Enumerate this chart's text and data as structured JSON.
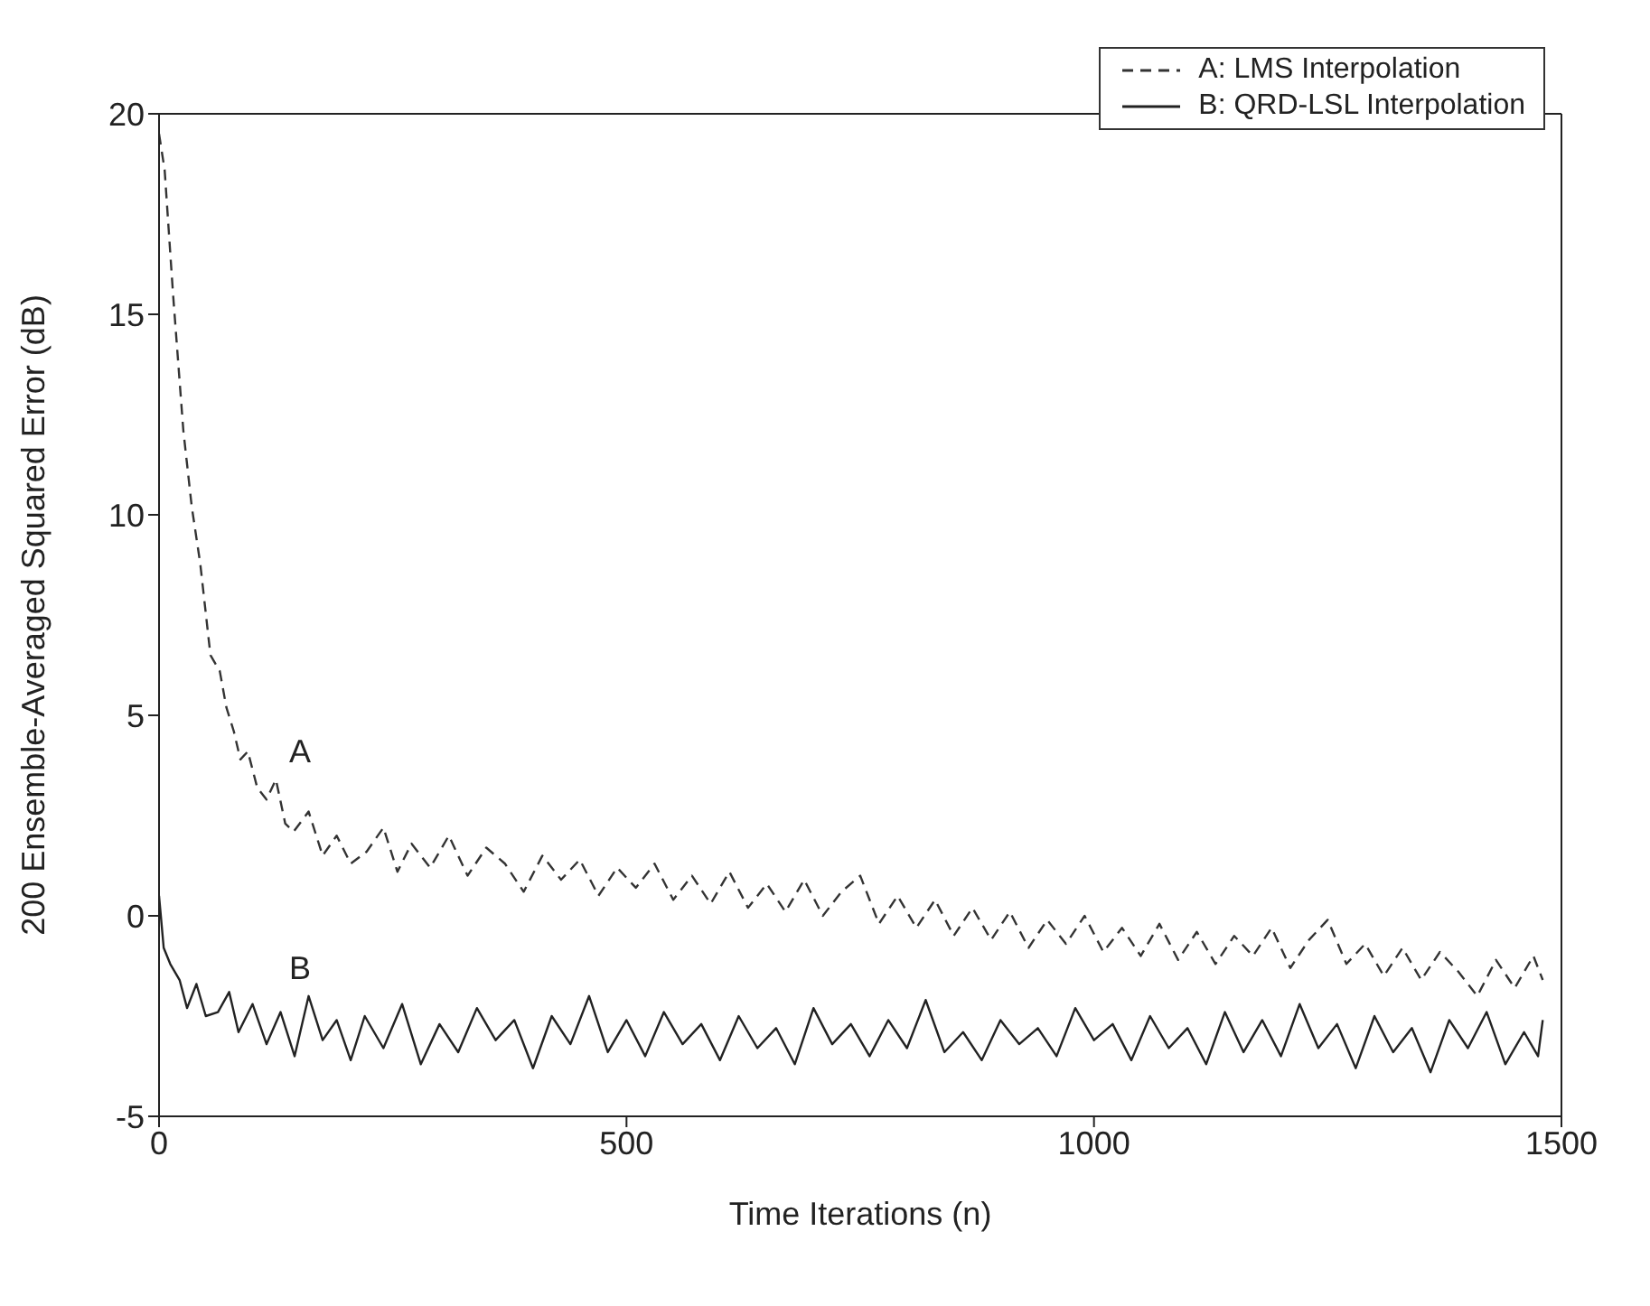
{
  "chart_data": {
    "type": "line",
    "xlabel": "Time Iterations (n)",
    "ylabel": "200 Ensemble-Averaged Squared Error (dB)",
    "xlim": [
      0,
      1500
    ],
    "xticks": [
      0,
      500,
      1000,
      1500
    ],
    "ylim": [
      -5,
      20
    ],
    "yticks": [
      -5,
      0,
      5,
      10,
      15,
      20
    ],
    "grid": false,
    "legend": "top right",
    "marker": "none",
    "annotations": [
      "A",
      "B"
    ],
    "series": [
      {
        "name": "A: LMS Interpolation",
        "color": "#333333",
        "line_style": "dashed",
        "x": [
          0,
          6,
          15,
          26,
          35,
          44,
          55,
          65,
          72,
          80,
          87,
          95,
          105,
          115,
          125,
          135,
          144,
          160,
          175,
          190,
          205,
          222,
          240,
          255,
          270,
          290,
          310,
          330,
          350,
          370,
          390,
          410,
          430,
          450,
          470,
          490,
          510,
          530,
          550,
          570,
          590,
          610,
          630,
          650,
          670,
          690,
          710,
          730,
          750,
          770,
          790,
          810,
          830,
          850,
          870,
          890,
          910,
          930,
          950,
          970,
          990,
          1010,
          1030,
          1050,
          1070,
          1090,
          1110,
          1130,
          1150,
          1170,
          1190,
          1210,
          1230,
          1250,
          1270,
          1290,
          1310,
          1330,
          1350,
          1370,
          1390,
          1410,
          1430,
          1450,
          1470,
          1480
        ],
        "values": [
          19.5,
          18.6,
          15.5,
          12.1,
          10.2,
          8.8,
          6.5,
          6.1,
          5.2,
          4.6,
          3.9,
          4.1,
          3.2,
          2.9,
          3.4,
          2.3,
          2.1,
          2.6,
          1.5,
          2.0,
          1.3,
          1.6,
          2.2,
          1.1,
          1.8,
          1.2,
          2.0,
          1.0,
          1.7,
          1.3,
          0.6,
          1.5,
          0.9,
          1.4,
          0.5,
          1.2,
          0.7,
          1.3,
          0.4,
          1.0,
          0.3,
          1.1,
          0.2,
          0.8,
          0.1,
          0.9,
          0.0,
          0.6,
          1.0,
          -0.2,
          0.5,
          -0.3,
          0.4,
          -0.5,
          0.2,
          -0.6,
          0.1,
          -0.8,
          -0.1,
          -0.7,
          0.0,
          -0.9,
          -0.3,
          -1.0,
          -0.2,
          -1.1,
          -0.4,
          -1.2,
          -0.5,
          -1.0,
          -0.3,
          -1.3,
          -0.6,
          -0.1,
          -1.2,
          -0.7,
          -1.5,
          -0.8,
          -1.6,
          -0.9,
          -1.4,
          -2.0,
          -1.1,
          -1.8,
          -1.0,
          -1.6
        ]
      },
      {
        "name": "B: QRD-LSL Interpolation",
        "color": "#222222",
        "line_style": "solid",
        "x": [
          0,
          5,
          12,
          22,
          30,
          40,
          50,
          63,
          75,
          85,
          100,
          115,
          130,
          145,
          160,
          175,
          190,
          205,
          220,
          240,
          260,
          280,
          300,
          320,
          340,
          360,
          380,
          400,
          420,
          440,
          460,
          480,
          500,
          520,
          540,
          560,
          580,
          600,
          620,
          640,
          660,
          680,
          700,
          720,
          740,
          760,
          780,
          800,
          820,
          840,
          860,
          880,
          900,
          920,
          940,
          960,
          980,
          1000,
          1020,
          1040,
          1060,
          1080,
          1100,
          1120,
          1140,
          1160,
          1180,
          1200,
          1220,
          1240,
          1260,
          1280,
          1300,
          1320,
          1340,
          1360,
          1380,
          1400,
          1420,
          1440,
          1460,
          1475,
          1480
        ],
        "values": [
          0.5,
          -0.8,
          -1.2,
          -1.6,
          -2.3,
          -1.7,
          -2.5,
          -2.4,
          -1.9,
          -2.9,
          -2.2,
          -3.2,
          -2.4,
          -3.5,
          -2.0,
          -3.1,
          -2.6,
          -3.6,
          -2.5,
          -3.3,
          -2.2,
          -3.7,
          -2.7,
          -3.4,
          -2.3,
          -3.1,
          -2.6,
          -3.8,
          -2.5,
          -3.2,
          -2.0,
          -3.4,
          -2.6,
          -3.5,
          -2.4,
          -3.2,
          -2.7,
          -3.6,
          -2.5,
          -3.3,
          -2.8,
          -3.7,
          -2.3,
          -3.2,
          -2.7,
          -3.5,
          -2.6,
          -3.3,
          -2.1,
          -3.4,
          -2.9,
          -3.6,
          -2.6,
          -3.2,
          -2.8,
          -3.5,
          -2.3,
          -3.1,
          -2.7,
          -3.6,
          -2.5,
          -3.3,
          -2.8,
          -3.7,
          -2.4,
          -3.4,
          -2.6,
          -3.5,
          -2.2,
          -3.3,
          -2.7,
          -3.8,
          -2.5,
          -3.4,
          -2.8,
          -3.9,
          -2.6,
          -3.3,
          -2.4,
          -3.7,
          -2.9,
          -3.5,
          -2.6
        ]
      }
    ]
  }
}
